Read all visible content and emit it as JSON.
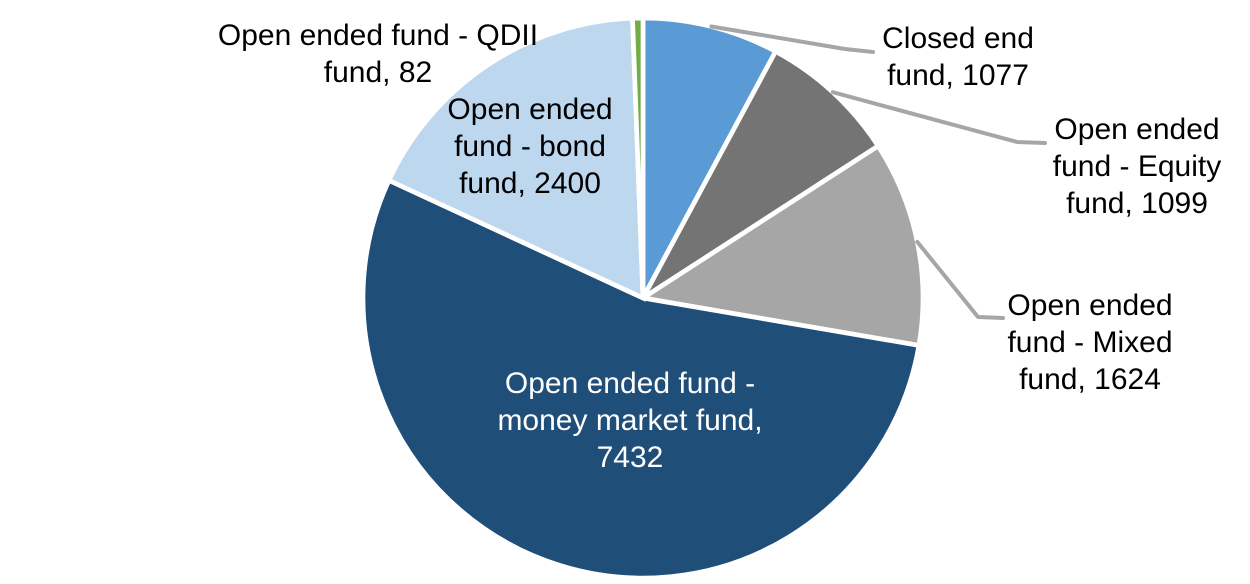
{
  "chart_data": {
    "type": "pie",
    "title": "",
    "total": 13714,
    "start_angle_deg": 0,
    "direction": "clockwise",
    "background_color": "#FFFFFF",
    "slice_border_color": "#FFFFFF",
    "leader_line_color": "#A6A6A6",
    "legend_position": "none",
    "segments": [
      {
        "name": "Closed end fund",
        "value": 1077,
        "color": "#5B9BD5",
        "label_text": "Closed end fund, 1077",
        "label_lines": [
          "Closed end",
          "fund, 1077"
        ],
        "label_text_color": "#000000",
        "has_leader_line": true
      },
      {
        "name": "Open ended fund - Equity fund",
        "value": 1099,
        "color": "#747474",
        "label_text": "Open ended fund - Equity fund, 1099",
        "label_lines": [
          "Open ended",
          "fund - Equity",
          "fund, 1099"
        ],
        "label_text_color": "#000000",
        "has_leader_line": true
      },
      {
        "name": "Open ended fund - Mixed fund",
        "value": 1624,
        "color": "#A6A6A6",
        "label_text": "Open ended fund - Mixed fund, 1624",
        "label_lines": [
          "Open ended",
          "fund - Mixed",
          "fund, 1624"
        ],
        "label_text_color": "#000000",
        "has_leader_line": true
      },
      {
        "name": "Open ended fund - money market fund",
        "value": 7432,
        "color": "#1F4E79",
        "label_text": "Open ended fund - money market fund, 7432",
        "label_lines": [
          "Open ended fund -",
          "money market fund,",
          "7432"
        ],
        "label_text_color": "#FFFFFF",
        "has_leader_line": false
      },
      {
        "name": "Open ended fund - bond fund",
        "value": 2400,
        "color": "#BDD7EE",
        "label_text": "Open ended fund - bond fund, 2400",
        "label_lines": [
          "Open ended",
          "fund - bond",
          "fund, 2400"
        ],
        "label_text_color": "#000000",
        "has_leader_line": false
      },
      {
        "name": "Open ended fund - QDII fund",
        "value": 82,
        "color": "#70AD47",
        "label_text": "Open ended fund - QDII fund, 82",
        "label_lines": [
          "Open ended fund - QDII",
          "fund, 82"
        ],
        "label_text_color": "#000000",
        "has_leader_line": false
      }
    ]
  }
}
